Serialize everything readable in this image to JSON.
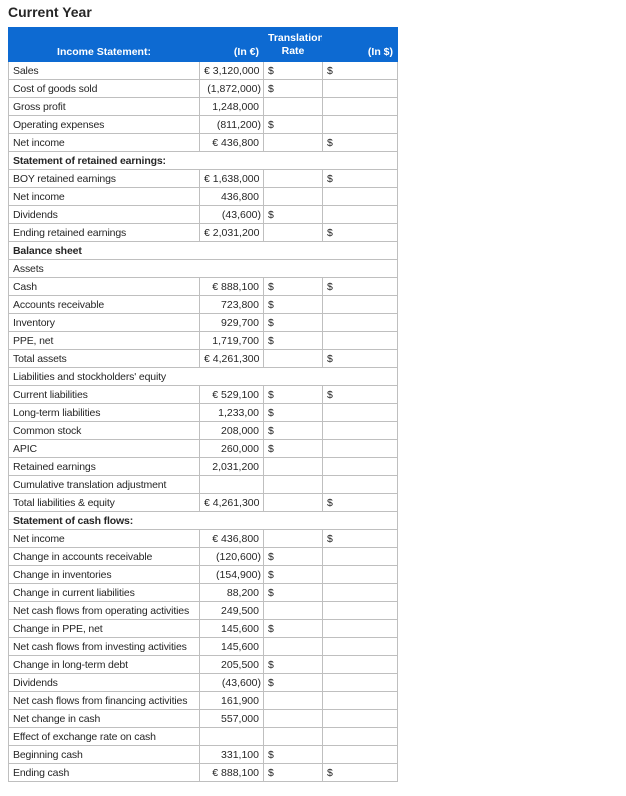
{
  "title": "Current Year",
  "colors": {
    "header_blue": "#0d6ad2",
    "input_cell_blue": "#d9e8ef",
    "grid_border": "#bfbfbf",
    "subtotal_border": "#000000",
    "text": "#262626"
  },
  "table": {
    "header": {
      "col1": "Income Statement:",
      "col2": "(In €)",
      "col3_line1": "Translation",
      "col3_line2": "Rate",
      "col4": "(In $)"
    },
    "rows": [
      {
        "t": "d",
        "label": "Sales",
        "e": "€ 3,120,000",
        "r": "$",
        "u": "$"
      },
      {
        "t": "d",
        "label": "Cost of goods sold",
        "e": "(1,872,000)",
        "r": "$",
        "u": ""
      },
      {
        "t": "d",
        "label": "Gross profit",
        "e": "1,248,000",
        "r": "",
        "u": "",
        "topE": 1,
        "topU": 1
      },
      {
        "t": "d",
        "label": "Operating expenses",
        "e": "(811,200)",
        "r": "$",
        "u": ""
      },
      {
        "t": "d",
        "label": "Net income",
        "e": "€ 436,800",
        "r": "",
        "u": "$",
        "topE": 1,
        "topU": 1,
        "dbl": 1
      },
      {
        "t": "s",
        "label": "Statement of retained earnings:",
        "bold": true
      },
      {
        "t": "d",
        "label": "BOY retained earnings",
        "e": "€ 1,638,000",
        "r": "",
        "u": "$"
      },
      {
        "t": "d",
        "label": "Net income",
        "e": "436,800",
        "r": "",
        "u": ""
      },
      {
        "t": "d",
        "label": "Dividends",
        "e": "(43,600)",
        "r": "$",
        "u": ""
      },
      {
        "t": "d",
        "label": "Ending retained earnings",
        "e": "€ 2,031,200",
        "r": "",
        "u": "$",
        "topE": 1,
        "topU": 1,
        "dbl": 1
      },
      {
        "t": "s",
        "label": "Balance sheet",
        "bold": true
      },
      {
        "t": "s",
        "label": "Assets",
        "bold": false
      },
      {
        "t": "d",
        "label": "Cash",
        "e": "€ 888,100",
        "r": "$",
        "u": "$"
      },
      {
        "t": "d",
        "label": "Accounts receivable",
        "e": "723,800",
        "r": "$",
        "u": ""
      },
      {
        "t": "d",
        "label": "Inventory",
        "e": "929,700",
        "r": "$",
        "u": ""
      },
      {
        "t": "d",
        "label": "PPE, net",
        "e": "1,719,700",
        "r": "$",
        "u": ""
      },
      {
        "t": "d",
        "label": "Total assets",
        "e": "€ 4,261,300",
        "r": "",
        "u": "$",
        "topE": 1,
        "topU": 1,
        "topR": 1,
        "dbl": 1
      },
      {
        "t": "s",
        "label": "Liabilities and stockholders' equity",
        "bold": false
      },
      {
        "t": "d",
        "label": "Current liabilities",
        "e": "€ 529,100",
        "r": "$",
        "u": "$"
      },
      {
        "t": "d",
        "label": "Long-term liabilities",
        "e": "1,233,00",
        "r": "$",
        "u": ""
      },
      {
        "t": "d",
        "label": "Common stock",
        "e": "208,000",
        "r": "$",
        "u": ""
      },
      {
        "t": "d",
        "label": "APIC",
        "e": "260,000",
        "r": "$",
        "u": ""
      },
      {
        "t": "d",
        "label": "Retained earnings",
        "e": "2,031,200",
        "r": "",
        "u": ""
      },
      {
        "t": "d",
        "label": "Cumulative translation adjustment",
        "e": "",
        "r": "",
        "u": ""
      },
      {
        "t": "d",
        "label": "Total liabilities & equity",
        "e": "€ 4,261,300",
        "r": "",
        "u": "$",
        "topE": 1,
        "topU": 1,
        "dbl": 1
      },
      {
        "t": "s",
        "label": "Statement of cash flows:",
        "bold": true
      },
      {
        "t": "d",
        "label": "Net income",
        "e": "€ 436,800",
        "r": "",
        "u": "$"
      },
      {
        "t": "d",
        "label": "Change in accounts receivable",
        "e": "(120,600)",
        "r": "$",
        "u": ""
      },
      {
        "t": "d",
        "label": "Change in inventories",
        "e": "(154,900)",
        "r": "$",
        "u": ""
      },
      {
        "t": "d",
        "label": "Change in current liabilities",
        "e": "88,200",
        "r": "$",
        "u": ""
      },
      {
        "t": "d",
        "label": "Net cash flows from operating activities",
        "e": "249,500",
        "r": "",
        "u": "",
        "topE": 1,
        "topU": 1
      },
      {
        "t": "d",
        "label": "Change in PPE, net",
        "e": "145,600",
        "r": "$",
        "u": ""
      },
      {
        "t": "d",
        "label": "Net cash flows from investing activities",
        "e": "145,600",
        "r": "",
        "u": "",
        "topE": 1,
        "topU": 1
      },
      {
        "t": "d",
        "label": "Change in long-term debt",
        "e": "205,500",
        "r": "$",
        "u": ""
      },
      {
        "t": "d",
        "label": "Dividends",
        "e": "(43,600)",
        "r": "$",
        "u": ""
      },
      {
        "t": "d",
        "label": "Net cash flows from financing activities",
        "e": "161,900",
        "r": "",
        "u": "",
        "topE": 1,
        "topU": 1
      },
      {
        "t": "d",
        "label": "Net change in cash",
        "e": "557,000",
        "r": "",
        "u": "",
        "topE": 1,
        "topU": 1
      },
      {
        "t": "d",
        "label": "Effect of exchange rate on cash",
        "e": "",
        "r": "",
        "u": ""
      },
      {
        "t": "d",
        "label": "Beginning cash",
        "e": "331,100",
        "r": "$",
        "u": ""
      },
      {
        "t": "d",
        "label": "Ending cash",
        "e": "€ 888,100",
        "r": "$",
        "u": "$",
        "topE": 1,
        "topU": 1,
        "topR": 1,
        "dbl": 1
      }
    ]
  }
}
